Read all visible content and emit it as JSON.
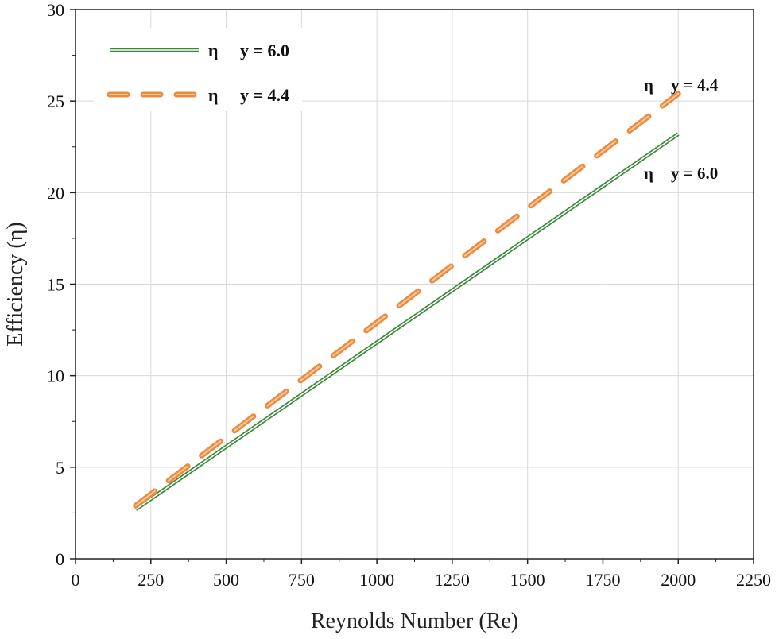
{
  "chart_data": {
    "type": "line",
    "xlabel": "Reynolds Number (Re)",
    "ylabel": "Efficiency (η)",
    "xlim": [
      0,
      2250
    ],
    "ylim": [
      0,
      30
    ],
    "xticks": [
      0,
      250,
      500,
      750,
      1000,
      1250,
      1500,
      1750,
      2000,
      2250
    ],
    "yticks": [
      0,
      5,
      10,
      15,
      20,
      25,
      30
    ],
    "grid": true,
    "legend_position": "top-left",
    "series": [
      {
        "name_symbol": "η",
        "name_value": "y = 6.0",
        "color": "#3a8a3a",
        "style": "solid",
        "x": [
          200,
          2000
        ],
        "y": [
          2.7,
          23.2
        ]
      },
      {
        "name_symbol": "η",
        "name_value": "y = 4.4",
        "color": "#ee8a3c",
        "style": "dashed",
        "x": [
          200,
          2000
        ],
        "y": [
          2.9,
          25.4
        ]
      }
    ],
    "annotations": [
      {
        "symbol": "η",
        "value": "y = 4.4",
        "series": 1
      },
      {
        "symbol": "η",
        "value": "y = 6.0",
        "series": 0
      }
    ]
  }
}
